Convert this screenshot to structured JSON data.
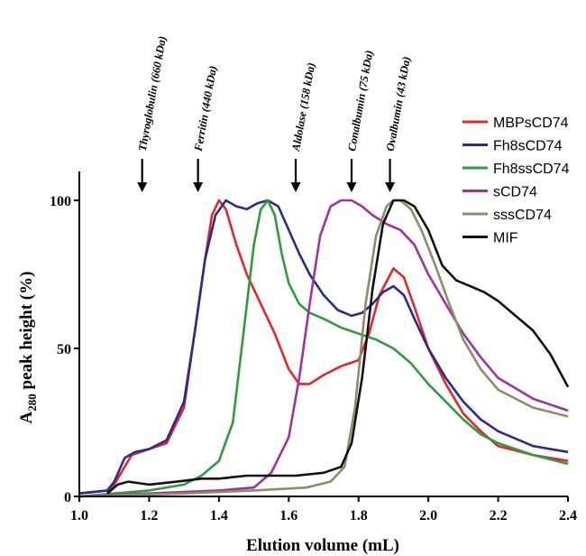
{
  "chart_data": {
    "type": "line",
    "xlabel": "Elution volume (mL)",
    "ylabel_main": "A",
    "ylabel_sub": "280",
    "ylabel_rest": " peak height (%)",
    "xlim": [
      1.0,
      2.4
    ],
    "ylim": [
      0,
      100
    ],
    "x_ticks": [
      "1.0",
      "1.2",
      "1.4",
      "1.6",
      "1.8",
      "2.0",
      "2.2",
      "2.4"
    ],
    "y_ticks": [
      "0",
      "50",
      "100"
    ],
    "legend_position": "top-right",
    "markers": [
      {
        "label": "Thyroglobulin (660 kDa)",
        "x": 1.18
      },
      {
        "label": "Ferritin (440 kDa)",
        "x": 1.34
      },
      {
        "label": "Aldolase (158 kDa)",
        "x": 1.62
      },
      {
        "label": "Conalbumin (75 kDa)",
        "x": 1.78
      },
      {
        "label": "Ovalbumin (43 kDa)",
        "x": 1.89
      }
    ],
    "series": [
      {
        "name": "MBPsCD74",
        "color": "#e2262b",
        "points": [
          [
            1.0,
            1
          ],
          [
            1.08,
            2
          ],
          [
            1.1,
            4
          ],
          [
            1.13,
            10
          ],
          [
            1.15,
            14
          ],
          [
            1.2,
            16
          ],
          [
            1.25,
            18
          ],
          [
            1.3,
            30
          ],
          [
            1.33,
            55
          ],
          [
            1.36,
            80
          ],
          [
            1.38,
            95
          ],
          [
            1.4,
            100
          ],
          [
            1.42,
            97
          ],
          [
            1.45,
            85
          ],
          [
            1.48,
            75
          ],
          [
            1.52,
            65
          ],
          [
            1.56,
            55
          ],
          [
            1.6,
            43
          ],
          [
            1.63,
            38
          ],
          [
            1.66,
            38
          ],
          [
            1.7,
            41
          ],
          [
            1.75,
            44
          ],
          [
            1.8,
            46
          ],
          [
            1.83,
            55
          ],
          [
            1.86,
            68
          ],
          [
            1.9,
            77
          ],
          [
            1.93,
            74
          ],
          [
            1.96,
            64
          ],
          [
            2.0,
            50
          ],
          [
            2.05,
            38
          ],
          [
            2.1,
            28
          ],
          [
            2.15,
            22
          ],
          [
            2.2,
            17
          ],
          [
            2.3,
            14
          ],
          [
            2.4,
            12
          ]
        ]
      },
      {
        "name": "Fh8sCD74",
        "color": "#2b2b8a",
        "points": [
          [
            1.0,
            1
          ],
          [
            1.08,
            2
          ],
          [
            1.1,
            5
          ],
          [
            1.13,
            13
          ],
          [
            1.16,
            15
          ],
          [
            1.2,
            16
          ],
          [
            1.25,
            19
          ],
          [
            1.3,
            32
          ],
          [
            1.33,
            55
          ],
          [
            1.36,
            80
          ],
          [
            1.39,
            95
          ],
          [
            1.42,
            100
          ],
          [
            1.45,
            98
          ],
          [
            1.48,
            97
          ],
          [
            1.51,
            99
          ],
          [
            1.54,
            100
          ],
          [
            1.57,
            98
          ],
          [
            1.6,
            90
          ],
          [
            1.63,
            82
          ],
          [
            1.66,
            75
          ],
          [
            1.7,
            68
          ],
          [
            1.74,
            63
          ],
          [
            1.78,
            61
          ],
          [
            1.81,
            62
          ],
          [
            1.84,
            65
          ],
          [
            1.87,
            69
          ],
          [
            1.9,
            71
          ],
          [
            1.93,
            68
          ],
          [
            1.96,
            60
          ],
          [
            2.0,
            50
          ],
          [
            2.05,
            40
          ],
          [
            2.1,
            32
          ],
          [
            2.15,
            26
          ],
          [
            2.2,
            22
          ],
          [
            2.3,
            17
          ],
          [
            2.4,
            15
          ]
        ]
      },
      {
        "name": "Fh8ssCD74",
        "color": "#2e9b3e",
        "points": [
          [
            1.0,
            0
          ],
          [
            1.1,
            1
          ],
          [
            1.2,
            2
          ],
          [
            1.3,
            4
          ],
          [
            1.35,
            7
          ],
          [
            1.4,
            12
          ],
          [
            1.44,
            25
          ],
          [
            1.47,
            55
          ],
          [
            1.5,
            85
          ],
          [
            1.52,
            97
          ],
          [
            1.54,
            100
          ],
          [
            1.56,
            95
          ],
          [
            1.58,
            82
          ],
          [
            1.6,
            72
          ],
          [
            1.63,
            65
          ],
          [
            1.66,
            62
          ],
          [
            1.7,
            60
          ],
          [
            1.75,
            57
          ],
          [
            1.8,
            55
          ],
          [
            1.85,
            53
          ],
          [
            1.9,
            50
          ],
          [
            1.95,
            45
          ],
          [
            2.0,
            38
          ],
          [
            2.05,
            32
          ],
          [
            2.1,
            26
          ],
          [
            2.15,
            21
          ],
          [
            2.2,
            18
          ],
          [
            2.3,
            14
          ],
          [
            2.4,
            11
          ]
        ]
      },
      {
        "name": "sCD74",
        "color": "#a3319c",
        "points": [
          [
            1.0,
            0
          ],
          [
            1.2,
            1
          ],
          [
            1.4,
            2
          ],
          [
            1.5,
            3
          ],
          [
            1.55,
            8
          ],
          [
            1.6,
            20
          ],
          [
            1.63,
            40
          ],
          [
            1.66,
            65
          ],
          [
            1.69,
            88
          ],
          [
            1.72,
            98
          ],
          [
            1.75,
            100
          ],
          [
            1.78,
            100
          ],
          [
            1.81,
            98
          ],
          [
            1.84,
            95
          ],
          [
            1.88,
            92
          ],
          [
            1.92,
            90
          ],
          [
            1.96,
            85
          ],
          [
            2.0,
            75
          ],
          [
            2.05,
            65
          ],
          [
            2.1,
            55
          ],
          [
            2.15,
            47
          ],
          [
            2.2,
            40
          ],
          [
            2.3,
            33
          ],
          [
            2.4,
            29
          ]
        ]
      },
      {
        "name": "sssCD74",
        "color": "#8e8b66",
        "points": [
          [
            1.0,
            0
          ],
          [
            1.3,
            1
          ],
          [
            1.5,
            2
          ],
          [
            1.65,
            3
          ],
          [
            1.72,
            5
          ],
          [
            1.76,
            10
          ],
          [
            1.79,
            30
          ],
          [
            1.82,
            65
          ],
          [
            1.85,
            88
          ],
          [
            1.88,
            98
          ],
          [
            1.9,
            100
          ],
          [
            1.92,
            100
          ],
          [
            1.95,
            97
          ],
          [
            1.98,
            90
          ],
          [
            2.02,
            78
          ],
          [
            2.06,
            65
          ],
          [
            2.1,
            53
          ],
          [
            2.15,
            43
          ],
          [
            2.2,
            36
          ],
          [
            2.3,
            30
          ],
          [
            2.4,
            27
          ]
        ]
      },
      {
        "name": "MIF",
        "color": "#111111",
        "points": [
          [
            1.08,
            1
          ],
          [
            1.11,
            4
          ],
          [
            1.14,
            5
          ],
          [
            1.2,
            4
          ],
          [
            1.28,
            5
          ],
          [
            1.35,
            6
          ],
          [
            1.4,
            6
          ],
          [
            1.48,
            7
          ],
          [
            1.55,
            7
          ],
          [
            1.62,
            7
          ],
          [
            1.7,
            8
          ],
          [
            1.75,
            10
          ],
          [
            1.78,
            18
          ],
          [
            1.81,
            40
          ],
          [
            1.84,
            70
          ],
          [
            1.87,
            92
          ],
          [
            1.9,
            100
          ],
          [
            1.93,
            100
          ],
          [
            1.96,
            98
          ],
          [
            2.0,
            90
          ],
          [
            2.04,
            78
          ],
          [
            2.08,
            73
          ],
          [
            2.12,
            71
          ],
          [
            2.16,
            69
          ],
          [
            2.2,
            66
          ],
          [
            2.25,
            61
          ],
          [
            2.3,
            56
          ],
          [
            2.35,
            48
          ],
          [
            2.4,
            37
          ]
        ]
      }
    ]
  }
}
